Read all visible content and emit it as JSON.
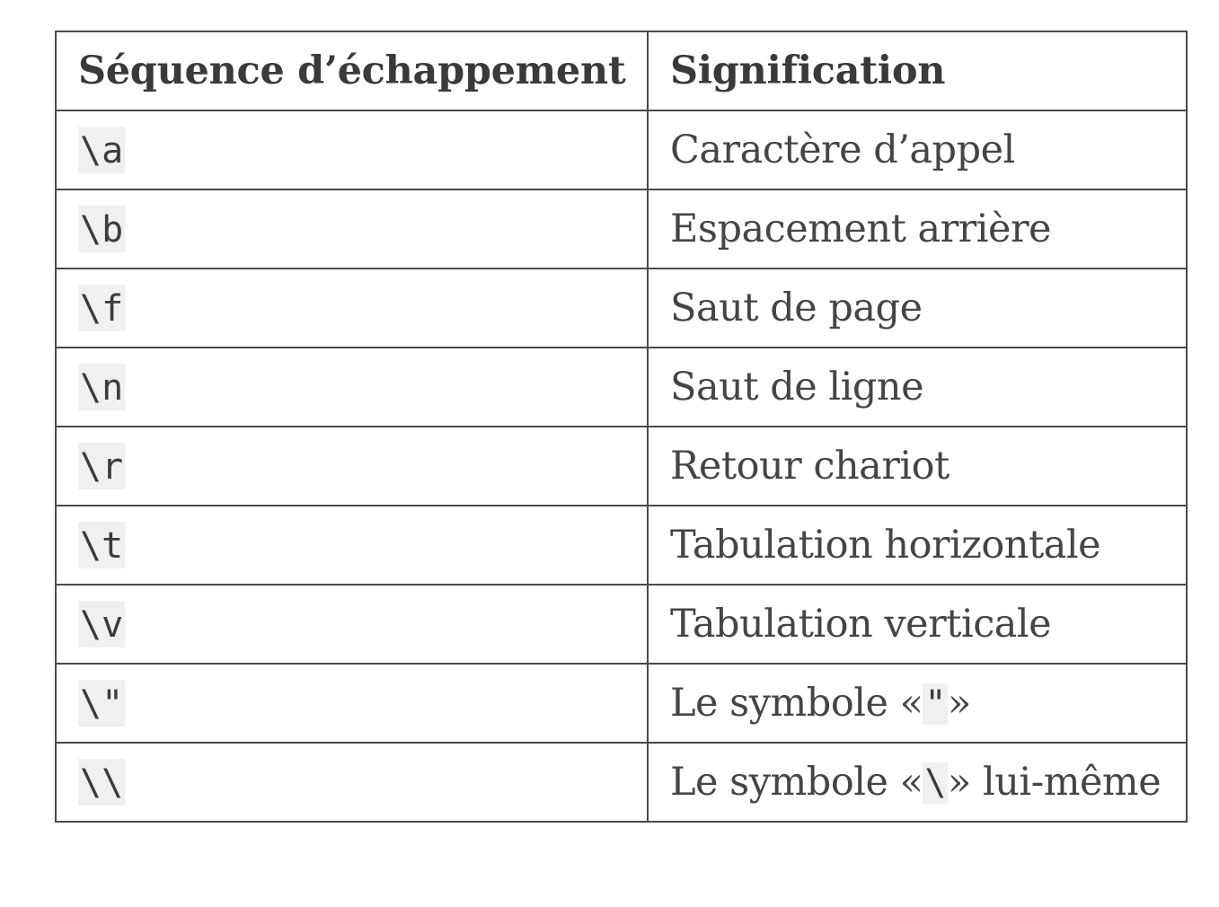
{
  "table": {
    "headers": [
      "Séquence d’échappement",
      "Signification"
    ],
    "rows": [
      {
        "code": "\\a",
        "meaning": "Caractère d’appel"
      },
      {
        "code": "\\b",
        "meaning": "Espacement arrière"
      },
      {
        "code": "\\f",
        "meaning": "Saut de page"
      },
      {
        "code": "\\n",
        "meaning": "Saut de ligne"
      },
      {
        "code": "\\r",
        "meaning": "Retour chariot"
      },
      {
        "code": "\\t",
        "meaning": "Tabulation horizontale"
      },
      {
        "code": "\\v",
        "meaning": "Tabulation verticale"
      },
      {
        "code": "\\\"",
        "meaning_prefix": "Le symbole «",
        "meaning_code": "\"",
        "meaning_suffix": "»"
      },
      {
        "code": "\\\\",
        "meaning_prefix": "Le symbole «",
        "meaning_code": "\\",
        "meaning_suffix": "» lui-même"
      }
    ]
  },
  "colors": {
    "border": "#4a4a4a",
    "text": "#3b3b3b",
    "code_background": "#f0f0f0"
  }
}
